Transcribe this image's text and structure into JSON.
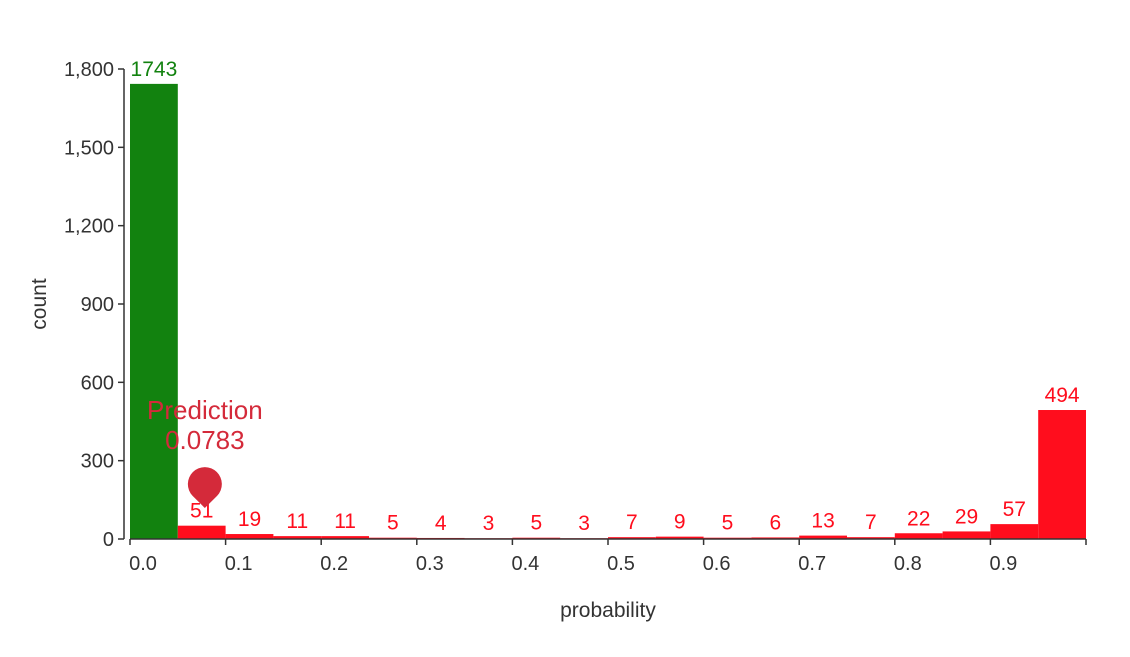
{
  "chart_data": {
    "type": "bar",
    "xlabel": "probability",
    "ylabel": "count",
    "x_ticks": [
      0.0,
      0.1,
      0.2,
      0.3,
      0.4,
      0.5,
      0.6,
      0.7,
      0.8,
      0.9
    ],
    "x_tick_labels": [
      "0.0",
      "0.1",
      "0.2",
      "0.3",
      "0.4",
      "0.5",
      "0.6",
      "0.7",
      "0.8",
      "0.9"
    ],
    "y_ticks": [
      0,
      300,
      600,
      900,
      1200,
      1500,
      1800
    ],
    "y_tick_labels": [
      "0",
      "300",
      "600",
      "900",
      "1,200",
      "1,500",
      "1,800"
    ],
    "xlim": [
      0.0,
      1.0
    ],
    "ylim": [
      0,
      1800
    ],
    "bin_width": 0.05,
    "bins": [
      {
        "start": 0.0,
        "end": 0.05,
        "count": 1743,
        "label": "1743",
        "color": "#12820f"
      },
      {
        "start": 0.05,
        "end": 0.1,
        "count": 51,
        "label": "51",
        "color": "#ff0d1d"
      },
      {
        "start": 0.1,
        "end": 0.15,
        "count": 19,
        "label": "19",
        "color": "#ff0d1d"
      },
      {
        "start": 0.15,
        "end": 0.2,
        "count": 11,
        "label": "11",
        "color": "#ff0d1d"
      },
      {
        "start": 0.2,
        "end": 0.25,
        "count": 11,
        "label": "11",
        "color": "#ff0d1d"
      },
      {
        "start": 0.25,
        "end": 0.3,
        "count": 5,
        "label": "5",
        "color": "#ff0d1d"
      },
      {
        "start": 0.3,
        "end": 0.35,
        "count": 4,
        "label": "4",
        "color": "#ff0d1d"
      },
      {
        "start": 0.35,
        "end": 0.4,
        "count": 3,
        "label": "3",
        "color": "#ff0d1d"
      },
      {
        "start": 0.4,
        "end": 0.45,
        "count": 5,
        "label": "5",
        "color": "#ff0d1d"
      },
      {
        "start": 0.45,
        "end": 0.5,
        "count": 3,
        "label": "3",
        "color": "#ff0d1d"
      },
      {
        "start": 0.5,
        "end": 0.55,
        "count": 7,
        "label": "7",
        "color": "#ff0d1d"
      },
      {
        "start": 0.55,
        "end": 0.6,
        "count": 9,
        "label": "9",
        "color": "#ff0d1d"
      },
      {
        "start": 0.6,
        "end": 0.65,
        "count": 5,
        "label": "5",
        "color": "#ff0d1d"
      },
      {
        "start": 0.65,
        "end": 0.7,
        "count": 6,
        "label": "6",
        "color": "#ff0d1d"
      },
      {
        "start": 0.7,
        "end": 0.75,
        "count": 13,
        "label": "13",
        "color": "#ff0d1d"
      },
      {
        "start": 0.75,
        "end": 0.8,
        "count": 7,
        "label": "7",
        "color": "#ff0d1d"
      },
      {
        "start": 0.8,
        "end": 0.85,
        "count": 22,
        "label": "22",
        "color": "#ff0d1d"
      },
      {
        "start": 0.85,
        "end": 0.9,
        "count": 29,
        "label": "29",
        "color": "#ff0d1d"
      },
      {
        "start": 0.9,
        "end": 0.95,
        "count": 57,
        "label": "57",
        "color": "#ff0d1d"
      },
      {
        "start": 0.95,
        "end": 1.0,
        "count": 494,
        "label": "494",
        "color": "#ff0d1d"
      }
    ],
    "prediction": {
      "label": "Prediction",
      "value": 0.0783,
      "value_label": "0.0783",
      "color": "#d42a3a"
    }
  }
}
